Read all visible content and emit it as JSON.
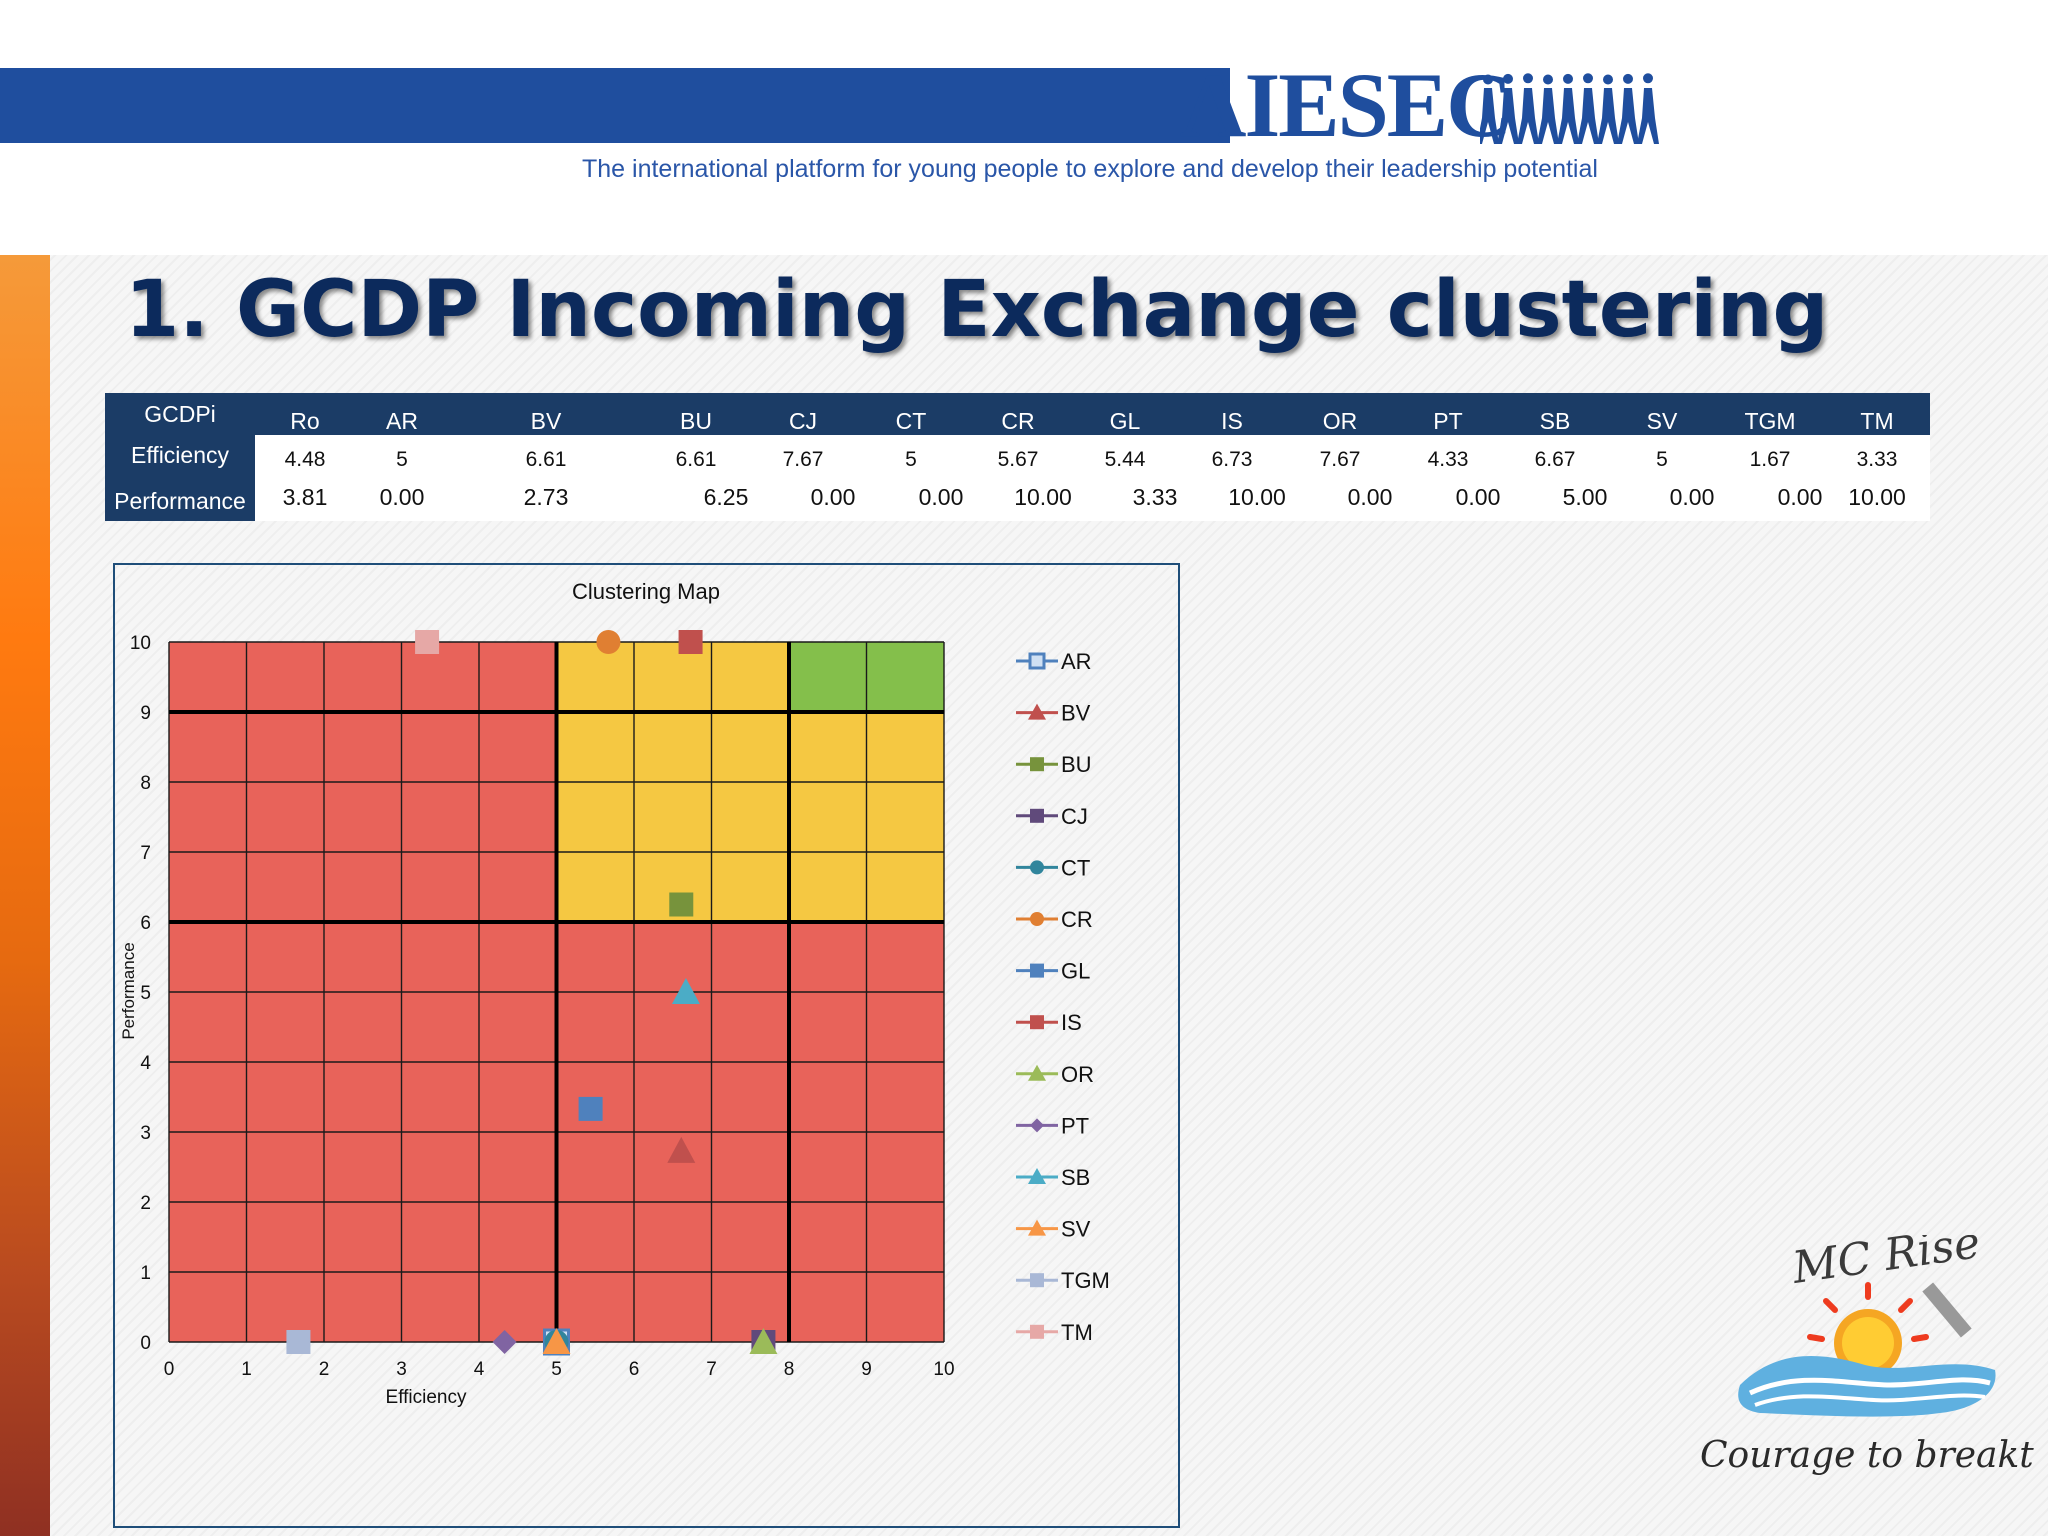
{
  "header": {
    "logo_text": "AIESEC",
    "tagline": "The international platform for young people to explore and develop their leadership potential"
  },
  "slide": {
    "title": "1. GCDP Incoming Exchange clustering"
  },
  "table": {
    "row_labels": [
      "GCDPi",
      "Efficiency",
      "Performance"
    ],
    "headers": [
      "Ro",
      "AR",
      "BV",
      "BU",
      "CJ",
      "CT",
      "CR",
      "GL",
      "IS",
      "OR",
      "PT",
      "SB",
      "SV",
      "TGM",
      "TM"
    ],
    "efficiency": [
      "4.48",
      "5",
      "6.61",
      "6.61",
      "7.67",
      "5",
      "5.67",
      "5.44",
      "6.73",
      "7.67",
      "4.33",
      "6.67",
      "5",
      "1.67",
      "3.33"
    ],
    "performance": [
      "3.81",
      "0.00",
      "2.73",
      "6.25",
      "0.00",
      "0.00",
      "10.00",
      "3.33",
      "10.00",
      "0.00",
      "0.00",
      "5.00",
      "0.00",
      "0.00",
      "10.00"
    ]
  },
  "colors": {
    "red_zone": "#e8635a",
    "yellow_zone": "#f5c842",
    "green_zone": "#84bf4b",
    "header_navy": "#1b3c66",
    "aiesec_blue": "#1f4e9e"
  },
  "chart_data": {
    "type": "scatter",
    "title": "Clustering Map",
    "xlabel": "Efficiency",
    "ylabel": "Performance",
    "xlim": [
      0,
      10
    ],
    "ylim": [
      0,
      10
    ],
    "xticks": [
      "0",
      "1",
      "2",
      "3",
      "4",
      "5",
      "6",
      "7",
      "8",
      "9",
      "10"
    ],
    "yticks": [
      "0",
      "1",
      "2",
      "3",
      "4",
      "5",
      "6",
      "7",
      "8",
      "9",
      "10"
    ],
    "grid": true,
    "legend_position": "right",
    "zones": [
      {
        "color": "red",
        "x": [
          0,
          10
        ],
        "y": [
          0,
          10
        ]
      },
      {
        "color": "yellow",
        "x": [
          5,
          10
        ],
        "y": [
          6,
          10
        ]
      },
      {
        "color": "green",
        "x": [
          8,
          10
        ],
        "y": [
          9,
          10
        ]
      }
    ],
    "series": [
      {
        "name": "AR",
        "x": 5,
        "y": 0,
        "marker": "square-open",
        "color": "#4f81bd"
      },
      {
        "name": "BV",
        "x": 6.61,
        "y": 2.73,
        "marker": "triangle",
        "color": "#c0504d"
      },
      {
        "name": "BU",
        "x": 6.61,
        "y": 6.25,
        "marker": "square",
        "color": "#77933c"
      },
      {
        "name": "CJ",
        "x": 7.67,
        "y": 0,
        "marker": "square",
        "color": "#604a7b"
      },
      {
        "name": "CT",
        "x": 5,
        "y": 0,
        "marker": "circle",
        "color": "#31859c"
      },
      {
        "name": "CR",
        "x": 5.67,
        "y": 10,
        "marker": "circle",
        "color": "#e07f32"
      },
      {
        "name": "GL",
        "x": 5.44,
        "y": 3.33,
        "marker": "square",
        "color": "#4f81bd"
      },
      {
        "name": "IS",
        "x": 6.73,
        "y": 10,
        "marker": "square",
        "color": "#c0504d"
      },
      {
        "name": "OR",
        "x": 7.67,
        "y": 0,
        "marker": "triangle",
        "color": "#9bbb59"
      },
      {
        "name": "PT",
        "x": 4.33,
        "y": 0,
        "marker": "diamond",
        "color": "#8064a2"
      },
      {
        "name": "SB",
        "x": 6.67,
        "y": 5,
        "marker": "triangle",
        "color": "#4bacc6"
      },
      {
        "name": "SV",
        "x": 5,
        "y": 0,
        "marker": "triangle",
        "color": "#f79646"
      },
      {
        "name": "TGM",
        "x": 1.67,
        "y": 0,
        "marker": "square",
        "color": "#a9b8d6"
      },
      {
        "name": "TM",
        "x": 3.33,
        "y": 10,
        "marker": "square",
        "color": "#e6a8a6"
      }
    ]
  },
  "mc_logo": {
    "name": "MC Rise",
    "slogan": "Courage to breakthrough"
  }
}
